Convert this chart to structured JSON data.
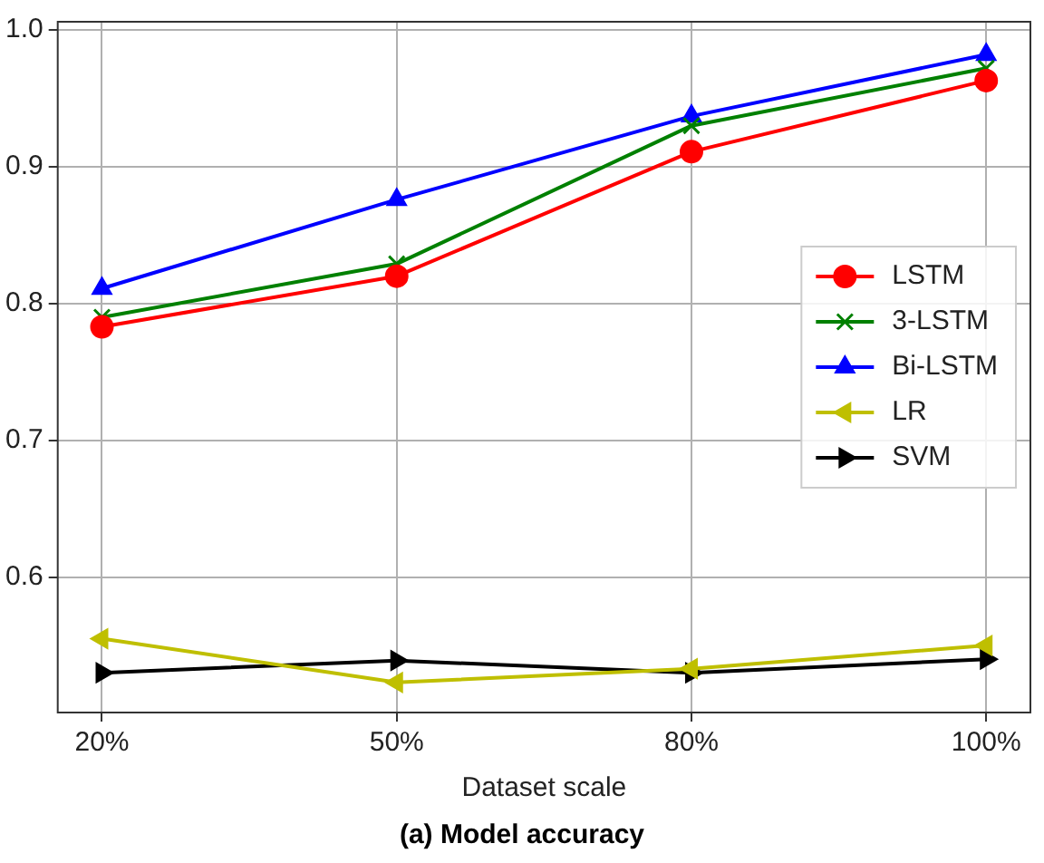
{
  "chart_data": {
    "type": "line",
    "xlabel": "Dataset scale",
    "annotations": [
      "(a) Model accuracy"
    ],
    "categories": [
      "20%",
      "50%",
      "80%",
      "100%"
    ],
    "ylim": [
      0.501,
      1.006
    ],
    "yticks": [
      0.6,
      0.7,
      0.8,
      0.9,
      {
        "value": 1,
        "label": "1.0"
      }
    ],
    "grid": true,
    "legend": "right",
    "series": [
      {
        "name": "LSTM",
        "color": "#ff0000",
        "marker": "circle",
        "values": [
          0.783,
          0.82,
          0.911,
          0.963
        ]
      },
      {
        "name": "3-LSTM",
        "color": "#008000",
        "marker": "cross",
        "values": [
          0.79,
          0.829,
          0.93,
          0.972
        ]
      },
      {
        "name": "Bi-LSTM",
        "color": "#0000ff",
        "marker": "triangle",
        "values": [
          0.811,
          0.876,
          0.937,
          0.982
        ]
      },
      {
        "name": "LR",
        "color": "#bfbf00",
        "marker": "triangle-left",
        "values": [
          0.555,
          0.523,
          0.533,
          0.55
        ]
      },
      {
        "name": "SVM",
        "color": "#000000",
        "marker": "triangle-right",
        "values": [
          0.53,
          0.539,
          0.53,
          0.54
        ]
      }
    ]
  }
}
